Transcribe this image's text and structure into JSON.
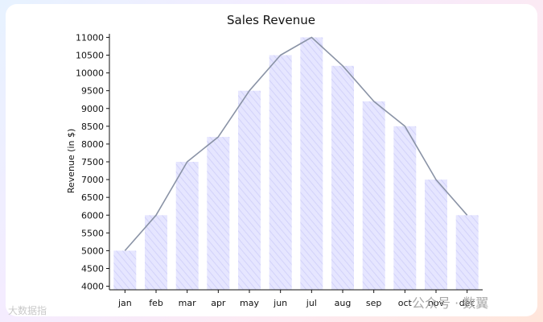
{
  "chart_data": {
    "type": "bar",
    "title": "Sales Revenue",
    "xlabel": "",
    "ylabel": "Revenue (in $)",
    "categories": [
      "jan",
      "feb",
      "mar",
      "apr",
      "may",
      "jun",
      "jul",
      "aug",
      "sep",
      "oct",
      "nov",
      "dec"
    ],
    "series": [
      {
        "values": [
          5000,
          6000,
          7500,
          8200,
          9500,
          10500,
          11000,
          10200,
          9200,
          8500,
          7000,
          6000
        ]
      }
    ],
    "line_values": [
      5000,
      6000,
      7500,
      8200,
      9500,
      10500,
      11000,
      10200,
      9200,
      8500,
      7000,
      6000
    ],
    "ylim": [
      3900,
      11100
    ],
    "yticks": [
      4000,
      4500,
      5000,
      5500,
      6000,
      6500,
      7000,
      7500,
      8000,
      8500,
      9000,
      9500,
      10000,
      10500,
      11000
    ],
    "grid": false,
    "bar_color": "#e6e6ff",
    "line_color": "#8a93a6"
  },
  "watermark": {
    "left": "大数据指",
    "right": "公众号 · 数翼"
  }
}
